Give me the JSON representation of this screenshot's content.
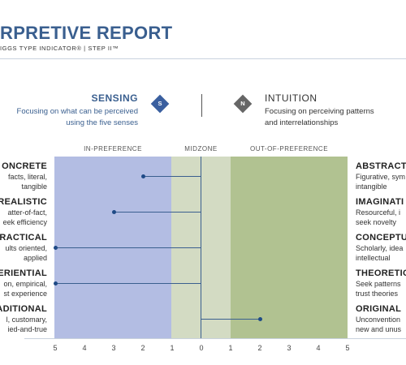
{
  "header": {
    "title": "RPRETIVE REPORT",
    "subtitle": "IGGS TYPE INDICATOR®  |  STEP II™"
  },
  "dimension": {
    "left": {
      "label": "SENSING",
      "badge": "S",
      "description": "Focusing on what can be perceived\nusing the five senses"
    },
    "right": {
      "label": "INTUITION",
      "badge": "N",
      "description": "Focusing on perceiving patterns\nand interrelationships"
    }
  },
  "zones": {
    "in_preference": "IN-PREFERENCE",
    "midzone": "MIDZONE",
    "out_of_preference": "OUT-OF-PREFERENCE"
  },
  "axis_ticks": [
    "5",
    "4",
    "3",
    "2",
    "1",
    "0",
    "1",
    "2",
    "3",
    "4",
    "5"
  ],
  "colors": {
    "in_preference": "#b3bde3",
    "midzone": "#d3dbc3",
    "out_of_preference": "#b1c291",
    "marker": "#1f4a86",
    "accent": "#3a5f8f"
  },
  "facets": [
    {
      "left_title": "ONCRETE",
      "left_desc": "facts, literal,\ntangible",
      "right_title": "ABSTRACT",
      "right_desc": "Figurative, sym\nintangible",
      "score": -2
    },
    {
      "left_title": "REALISTIC",
      "left_desc": "atter-of-fact,\neek efficiency",
      "right_title": "IMAGINATI",
      "right_desc": "Resourceful, i\nseek novelty",
      "score": -3
    },
    {
      "left_title": "PRACTICAL",
      "left_desc": "ults oriented,\napplied",
      "right_title": "CONCEPTU",
      "right_desc": "Scholarly, idea\nintellectual",
      "score": -5
    },
    {
      "left_title": "ERIENTIAL",
      "left_desc": "on, empirical,\nst experience",
      "right_title": "THEORETIC",
      "right_desc": "Seek patterns\ntrust theories",
      "score": -5
    },
    {
      "left_title": "ADITIONAL",
      "left_desc": "l, customary,\nied-and-true",
      "right_title": "ORIGINAL",
      "right_desc": "Unconvention\nnew and unus",
      "score": 2
    }
  ]
}
